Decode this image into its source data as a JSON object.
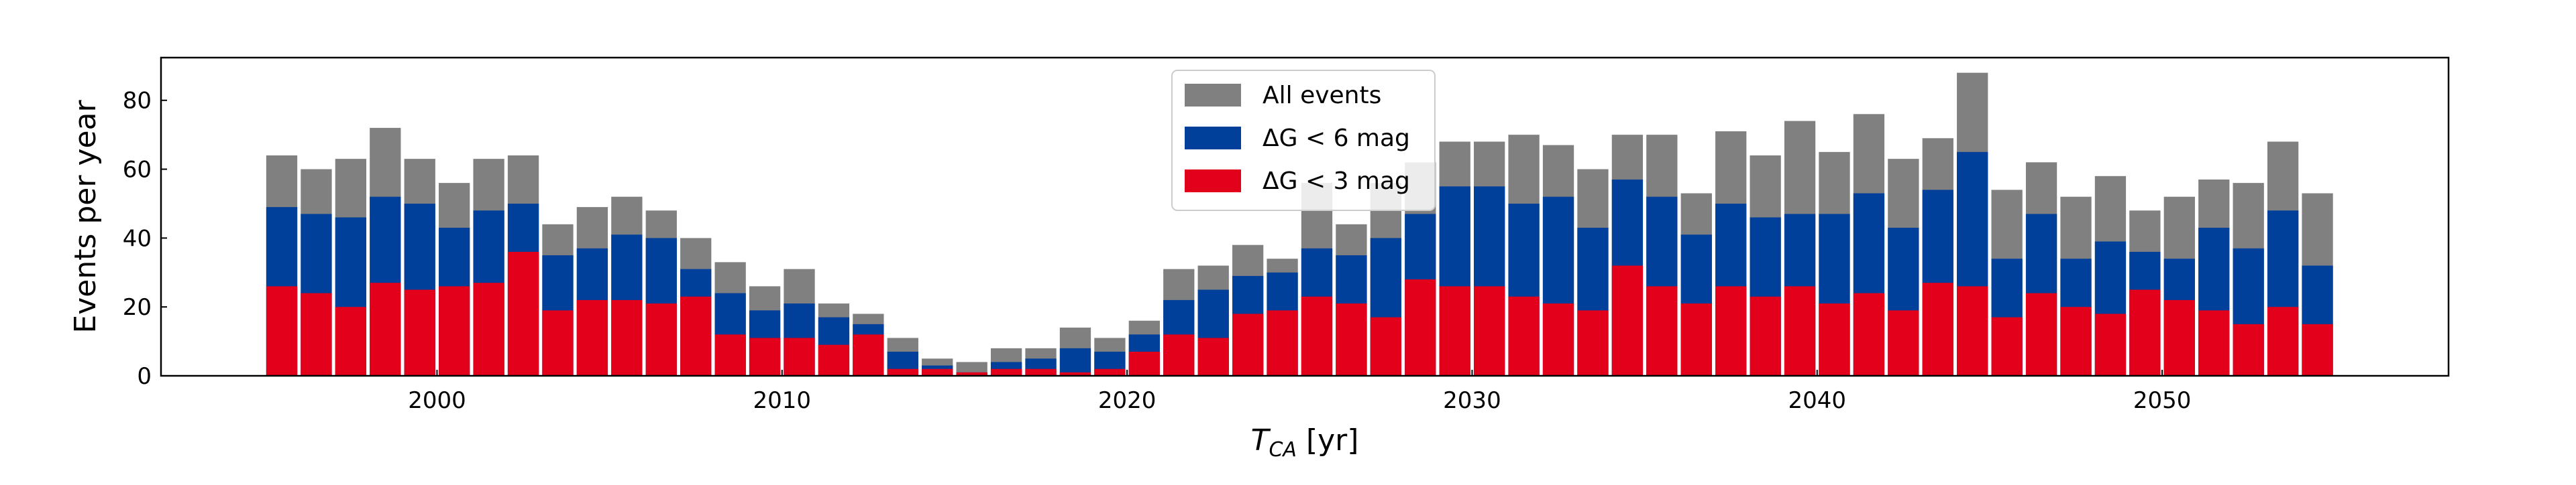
{
  "chart_data": {
    "type": "bar",
    "overlap": true,
    "x_label": "T_CA [yr]",
    "y_label": "Events per year",
    "x": [
      1995.5,
      1996.5,
      1997.5,
      1998.5,
      1999.5,
      2000.5,
      2001.5,
      2002.5,
      2003.5,
      2004.5,
      2005.5,
      2006.5,
      2007.5,
      2008.5,
      2009.5,
      2010.5,
      2011.5,
      2012.5,
      2013.5,
      2014.5,
      2015.5,
      2016.5,
      2017.5,
      2018.5,
      2019.5,
      2020.5,
      2021.5,
      2022.5,
      2023.5,
      2024.5,
      2025.5,
      2026.5,
      2027.5,
      2028.5,
      2029.5,
      2030.5,
      2031.5,
      2032.5,
      2033.5,
      2034.5,
      2035.5,
      2036.5,
      2037.5,
      2038.5,
      2039.5,
      2040.5,
      2041.5,
      2042.5,
      2043.5,
      2044.5,
      2045.5,
      2046.5,
      2047.5,
      2048.5,
      2049.5,
      2050.5,
      2051.5,
      2052.5,
      2053.5,
      2054.5
    ],
    "series": [
      {
        "name": "All events",
        "color": "#808080",
        "values": [
          64,
          60,
          63,
          72,
          63,
          56,
          63,
          64,
          44,
          49,
          52,
          48,
          40,
          33,
          26,
          31,
          21,
          18,
          11,
          5,
          4,
          8,
          8,
          14,
          11,
          16,
          31,
          32,
          38,
          34,
          56,
          44,
          56,
          62,
          68,
          68,
          70,
          67,
          60,
          70,
          70,
          53,
          71,
          64,
          74,
          65,
          76,
          63,
          69,
          88,
          54,
          62,
          52,
          58,
          48,
          52,
          57,
          56,
          68,
          53
        ]
      },
      {
        "name": "ΔG < 6 mag",
        "color": "#003f9a",
        "values": [
          49,
          47,
          46,
          52,
          50,
          43,
          48,
          50,
          35,
          37,
          41,
          40,
          31,
          24,
          19,
          21,
          17,
          15,
          7,
          3,
          1,
          4,
          5,
          8,
          7,
          12,
          22,
          25,
          29,
          30,
          37,
          35,
          40,
          47,
          55,
          55,
          50,
          52,
          43,
          57,
          52,
          41,
          50,
          46,
          47,
          47,
          53,
          43,
          54,
          65,
          34,
          47,
          34,
          39,
          36,
          34,
          43,
          37,
          48,
          32
        ]
      },
      {
        "name": "ΔG < 3 mag",
        "color": "#e3001b",
        "values": [
          26,
          24,
          20,
          27,
          25,
          26,
          27,
          36,
          19,
          22,
          22,
          21,
          23,
          12,
          11,
          11,
          9,
          12,
          2,
          2,
          1,
          2,
          2,
          1,
          2,
          7,
          12,
          11,
          18,
          19,
          23,
          21,
          17,
          28,
          26,
          26,
          23,
          21,
          19,
          32,
          26,
          21,
          26,
          23,
          26,
          21,
          24,
          19,
          27,
          26,
          17,
          24,
          20,
          18,
          25,
          22,
          19,
          15,
          20,
          15
        ]
      }
    ],
    "xlim": [
      1992,
      2058.3
    ],
    "xticks": [
      2000,
      2010,
      2020,
      2030,
      2040,
      2050
    ],
    "ylim": [
      0,
      92.4
    ],
    "yticks": [
      0,
      20,
      40,
      60,
      80
    ],
    "bar_width": 0.9,
    "legend": "upper center"
  }
}
